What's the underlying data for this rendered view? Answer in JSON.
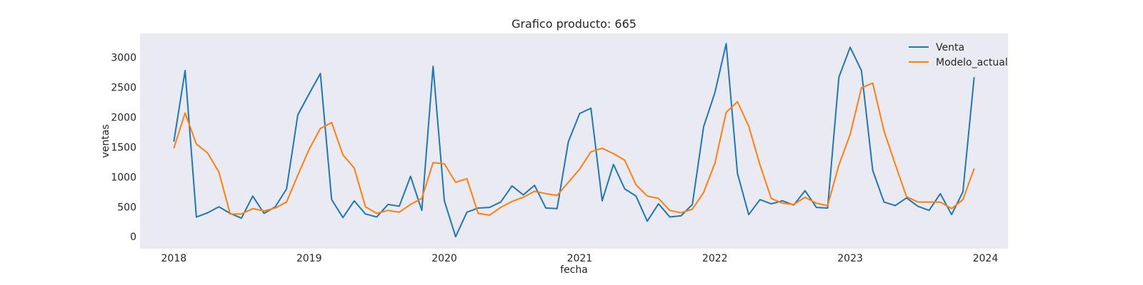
{
  "chart_data": {
    "type": "line",
    "title": "Grafico producto: 665",
    "xlabel": "fecha",
    "ylabel": "ventas",
    "x_start": "2018-01",
    "x_tick_labels": [
      "2018",
      "2019",
      "2020",
      "2021",
      "2022",
      "2023",
      "2024"
    ],
    "x_tick_values": [
      "2018-01",
      "2019-01",
      "2020-01",
      "2021-01",
      "2022-01",
      "2023-01",
      "2024-01"
    ],
    "y_ticks": [
      0,
      500,
      1000,
      1500,
      2000,
      2500,
      3000
    ],
    "ylim": [
      -200,
      3400
    ],
    "xlim": [
      "2017-10",
      "2024-03"
    ],
    "grid": false,
    "legend_position": "top-right",
    "series": [
      {
        "name": "Venta",
        "color": "#1f77b4",
        "values": [
          1590,
          2780,
          330,
          400,
          500,
          390,
          310,
          680,
          390,
          500,
          800,
          2040,
          2390,
          2730,
          620,
          320,
          600,
          380,
          330,
          540,
          510,
          1010,
          440,
          2850,
          600,
          0,
          410,
          480,
          490,
          580,
          850,
          700,
          860,
          480,
          470,
          1590,
          2060,
          2150,
          600,
          1210,
          800,
          680,
          260,
          550,
          330,
          350,
          540,
          1840,
          2410,
          3230,
          1060,
          370,
          620,
          550,
          600,
          530,
          770,
          490,
          480,
          2670,
          3170,
          2780,
          1110,
          580,
          520,
          650,
          510,
          440,
          720,
          370,
          750,
          2670
        ]
      },
      {
        "name": "Modelo_actual",
        "color": "#ff7f0e",
        "values": [
          1480,
          2070,
          1550,
          1400,
          1080,
          380,
          380,
          470,
          430,
          480,
          580,
          1030,
          1460,
          1810,
          1910,
          1370,
          1150,
          500,
          390,
          440,
          410,
          540,
          640,
          1240,
          1220,
          910,
          970,
          390,
          360,
          490,
          590,
          660,
          760,
          720,
          690,
          910,
          1130,
          1420,
          1480,
          1390,
          1280,
          870,
          680,
          640,
          440,
          400,
          460,
          740,
          1230,
          2080,
          2260,
          1850,
          1200,
          640,
          560,
          540,
          660,
          560,
          520,
          1200,
          1710,
          2490,
          2570,
          1770,
          1210,
          670,
          580,
          580,
          580,
          470,
          620,
          1140
        ]
      }
    ]
  }
}
